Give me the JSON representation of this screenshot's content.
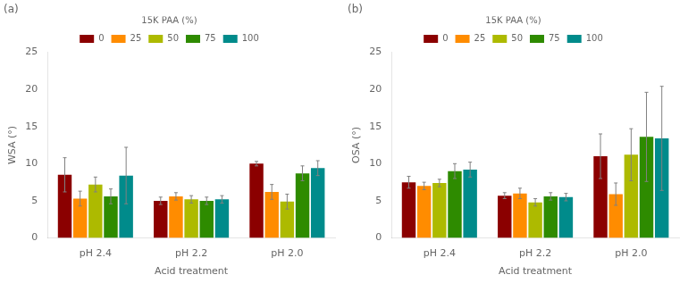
{
  "chart_data": [
    {
      "type": "bar",
      "title": "(a)",
      "categories": [
        "pH 2.4",
        "pH 2.2",
        "pH 2.0"
      ],
      "series": [
        {
          "name": "0",
          "color": "#8B0000",
          "values": [
            8.5,
            5.0,
            10.0
          ],
          "errors": [
            2.3,
            0.5,
            0.3
          ]
        },
        {
          "name": "25",
          "color": "#FF8C00",
          "values": [
            5.3,
            5.6,
            6.2
          ],
          "errors": [
            1.0,
            0.5,
            1.0
          ]
        },
        {
          "name": "50",
          "color": "#ADBA00",
          "values": [
            7.2,
            5.2,
            4.9
          ],
          "errors": [
            1.0,
            0.5,
            1.0
          ]
        },
        {
          "name": "75",
          "color": "#2E8B00",
          "values": [
            5.6,
            5.0,
            8.7
          ],
          "errors": [
            1.0,
            0.5,
            1.0
          ]
        },
        {
          "name": "100",
          "color": "#008B8B",
          "values": [
            8.4,
            5.2,
            9.4
          ],
          "errors": [
            3.8,
            0.5,
            1.0
          ]
        }
      ],
      "xlabel": "Acid treatment",
      "ylabel": "WSA (°)",
      "legend_title": "15K PAA (%)",
      "ylim": [
        0,
        25
      ],
      "yticks": [
        0,
        5,
        10,
        15,
        20,
        25
      ],
      "grid": false,
      "legend": "top"
    },
    {
      "type": "bar",
      "title": "(b)",
      "categories": [
        "pH 2.4",
        "pH 2.2",
        "pH 2.0"
      ],
      "series": [
        {
          "name": "0",
          "color": "#8B0000",
          "values": [
            7.5,
            5.7,
            11.0
          ],
          "errors": [
            0.8,
            0.4,
            3.0
          ]
        },
        {
          "name": "25",
          "color": "#FF8C00",
          "values": [
            7.0,
            6.0,
            5.9
          ],
          "errors": [
            0.5,
            0.7,
            1.5
          ]
        },
        {
          "name": "50",
          "color": "#ADBA00",
          "values": [
            7.4,
            4.8,
            11.2
          ],
          "errors": [
            0.5,
            0.5,
            3.5
          ]
        },
        {
          "name": "75",
          "color": "#2E8B00",
          "values": [
            9.0,
            5.6,
            13.6
          ],
          "errors": [
            1.0,
            0.5,
            6.0
          ]
        },
        {
          "name": "100",
          "color": "#008B8B",
          "values": [
            9.2,
            5.5,
            13.4
          ],
          "errors": [
            1.0,
            0.5,
            7.0
          ]
        }
      ],
      "xlabel": "Acid treatment",
      "ylabel": "OSA (°)",
      "legend_title": "15K PAA (%)",
      "ylim": [
        0,
        25
      ],
      "yticks": [
        0,
        5,
        10,
        15,
        20,
        25
      ],
      "grid": false,
      "legend": "top"
    }
  ]
}
